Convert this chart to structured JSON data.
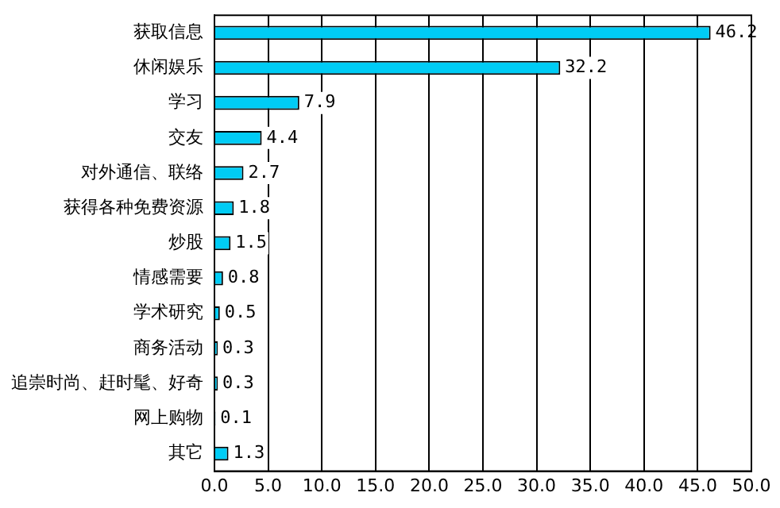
{
  "chart_data": {
    "type": "bar",
    "orientation": "horizontal",
    "categories": [
      "获取信息",
      "休闲娱乐",
      "学习",
      "交友",
      "对外通信、联络",
      "获得各种免费资源",
      "炒股",
      "情感需要",
      "学术研究",
      "商务活动",
      "追崇时尚、赶时髦、好奇",
      "网上购物",
      "其它"
    ],
    "values": [
      46.2,
      32.2,
      7.9,
      4.4,
      2.7,
      1.8,
      1.5,
      0.8,
      0.5,
      0.3,
      0.3,
      0.1,
      1.3
    ],
    "color": "#00ccf5",
    "xlim": [
      0,
      50
    ],
    "xticks": [
      {
        "value": 0,
        "label": "0.0"
      },
      {
        "value": 5,
        "label": "5.0"
      },
      {
        "value": 10,
        "label": "10.0"
      },
      {
        "value": 15,
        "label": "15.0"
      },
      {
        "value": 20,
        "label": "20.0"
      },
      {
        "value": 25,
        "label": "25.0"
      },
      {
        "value": 30,
        "label": "30.0"
      },
      {
        "value": 35,
        "label": "35.0"
      },
      {
        "value": 40,
        "label": "40.0"
      },
      {
        "value": 45,
        "label": "45.0"
      },
      {
        "value": 50,
        "label": "50.0"
      }
    ],
    "grid": "x",
    "data_labels": true
  }
}
